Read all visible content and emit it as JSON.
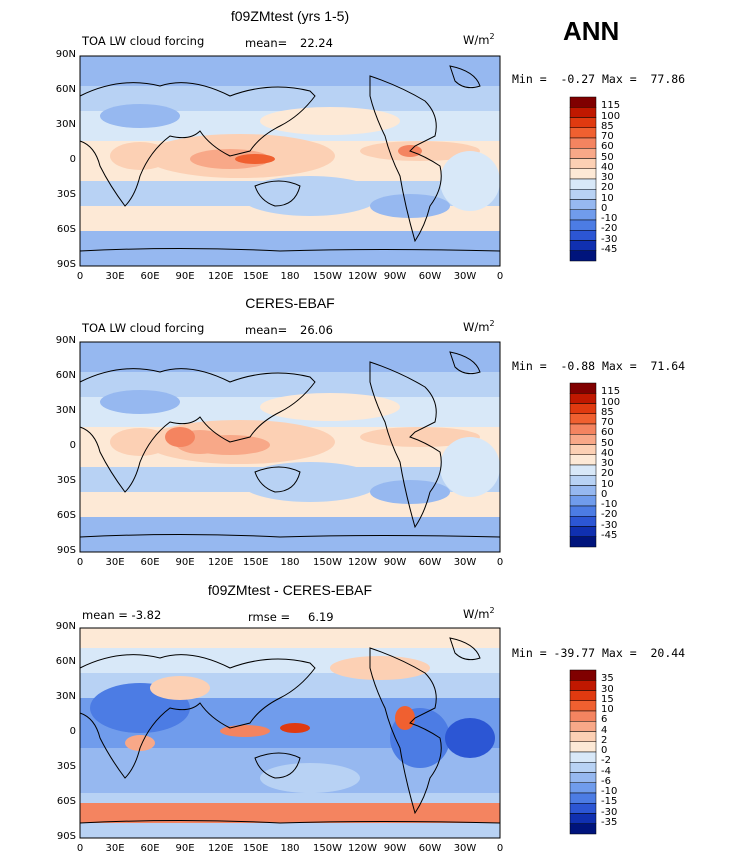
{
  "season": "ANN",
  "panels": [
    {
      "title": "f09ZMtest (yrs 1-5)",
      "left_label": "TOA LW cloud forcing",
      "mean_label": "mean=",
      "mean_value": "22.24",
      "units": "W/m",
      "units_exp": "2",
      "minmax": "Min =  -0.27 Max =  77.86",
      "colorbar": [
        "115",
        "100",
        "85",
        "70",
        "60",
        "50",
        "40",
        "30",
        "20",
        "10",
        "0",
        "-10",
        "-20",
        "-30",
        "-45"
      ],
      "colors": [
        "#800000",
        "#c01800",
        "#e03a10",
        "#f06030",
        "#f48460",
        "#f8a888",
        "#fcd0b4",
        "#fde9d6",
        "#d8e8f8",
        "#b8d2f4",
        "#96b8f0",
        "#709cec",
        "#4c7ce4",
        "#2c56d4",
        "#1030b0",
        "#00147c"
      ]
    },
    {
      "title": "CERES-EBAF",
      "left_label": "TOA LW cloud forcing",
      "mean_label": "mean=",
      "mean_value": "26.06",
      "units": "W/m",
      "units_exp": "2",
      "minmax": "Min =  -0.88 Max =  71.64",
      "colorbar": [
        "115",
        "100",
        "85",
        "70",
        "60",
        "50",
        "40",
        "30",
        "20",
        "10",
        "0",
        "-10",
        "-20",
        "-30",
        "-45"
      ],
      "colors": [
        "#800000",
        "#c01800",
        "#e03a10",
        "#f06030",
        "#f48460",
        "#f8a888",
        "#fcd0b4",
        "#fde9d6",
        "#d8e8f8",
        "#b8d2f4",
        "#96b8f0",
        "#709cec",
        "#4c7ce4",
        "#2c56d4",
        "#1030b0",
        "#00147c"
      ]
    },
    {
      "title": "f09ZMtest - CERES-EBAF",
      "left_label": "mean =   -3.82",
      "mean_label": "rmse =",
      "mean_value": "6.19",
      "units": "W/m",
      "units_exp": "2",
      "minmax": "Min = -39.77 Max =  20.44",
      "colorbar": [
        "35",
        "30",
        "15",
        "10",
        "6",
        "4",
        "2",
        "0",
        "-2",
        "-4",
        "-6",
        "-10",
        "-15",
        "-30",
        "-35"
      ],
      "colors": [
        "#800000",
        "#c01800",
        "#e03a10",
        "#f06030",
        "#f48460",
        "#f8a888",
        "#fcd0b4",
        "#fde9d6",
        "#d8e8f8",
        "#b8d2f4",
        "#96b8f0",
        "#709cec",
        "#4c7ce4",
        "#2c56d4",
        "#1030b0",
        "#00147c"
      ]
    }
  ],
  "lat_ticks": [
    "90N",
    "60N",
    "30N",
    "0",
    "30S",
    "60S",
    "90S"
  ],
  "lon_ticks": [
    "0",
    "30E",
    "60E",
    "90E",
    "120E",
    "150E",
    "180",
    "150W",
    "120W",
    "90W",
    "60W",
    "30W",
    "0"
  ]
}
